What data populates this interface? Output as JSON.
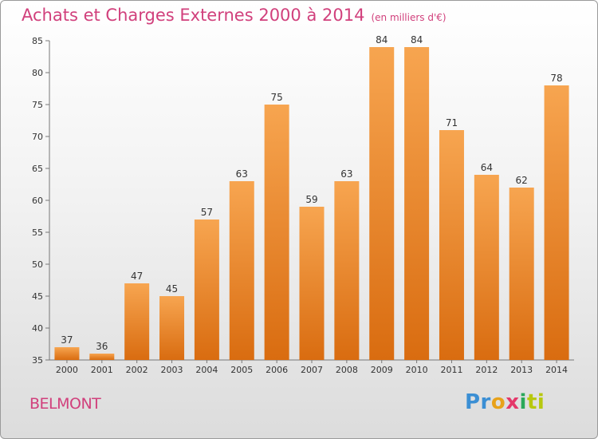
{
  "title": "Achats et Charges Externes 2000 à 2014",
  "subtitle": "(en milliers d'€)",
  "town": "BELMONT",
  "logo": {
    "p1": "Pr",
    "p2": "o",
    "p3": "x",
    "p4": "i",
    "p5": "ti"
  },
  "colors": {
    "bar_top": "#f7a550",
    "bar_bottom": "#d96c10",
    "title": "#d1407c"
  },
  "chart_data": {
    "type": "bar",
    "title": "Achats et Charges Externes 2000 à 2014",
    "subtitle": "(en milliers d'€)",
    "categories": [
      "2000",
      "2001",
      "2002",
      "2003",
      "2004",
      "2005",
      "2006",
      "2007",
      "2008",
      "2009",
      "2010",
      "2011",
      "2012",
      "2013",
      "2014"
    ],
    "values": [
      37,
      36,
      47,
      45,
      57,
      63,
      75,
      59,
      63,
      84,
      84,
      71,
      64,
      62,
      78
    ],
    "ylim": [
      35,
      85
    ],
    "yticks": [
      35,
      40,
      45,
      50,
      55,
      60,
      65,
      70,
      75,
      80,
      85
    ],
    "grid": false,
    "legend": "none"
  }
}
